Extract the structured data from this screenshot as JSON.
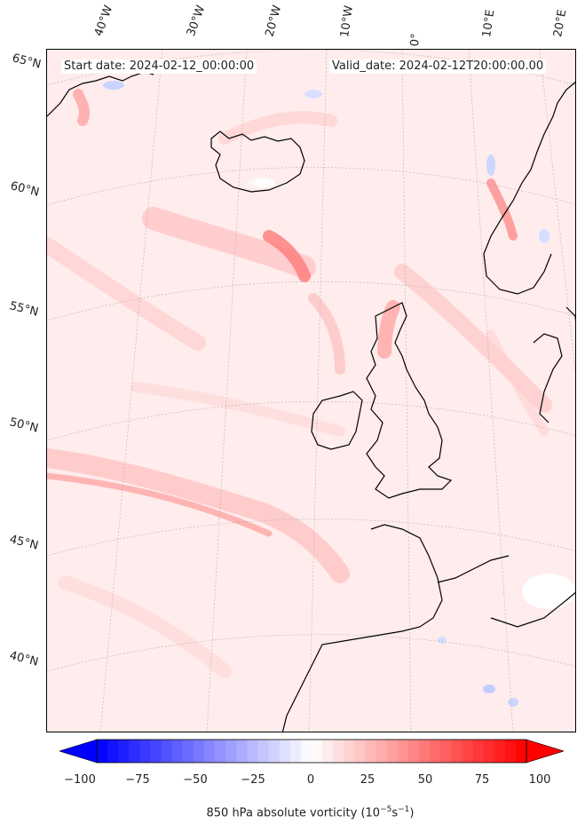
{
  "header": {
    "start_date": "Start date: 2024-02-12_00:00:00",
    "valid_date": "Valid_date: 2024-02-12T20:00:00.00"
  },
  "longitude_labels": [
    "40°W",
    "30°W",
    "20°W",
    "10°W",
    "0°",
    "10°E",
    "20°E"
  ],
  "latitude_labels": [
    "65°N",
    "60°N",
    "55°N",
    "50°N",
    "45°N",
    "40°N"
  ],
  "colorbar": {
    "label_prefix": "850 hPa absolute vorticity (10",
    "label_exp1": "−5",
    "label_mid": "s",
    "label_exp2": "−1",
    "label_suffix": ")",
    "ticks": [
      "−100",
      "−75",
      "−50",
      "−25",
      "0",
      "25",
      "50",
      "75",
      "100"
    ],
    "min": -100,
    "max": 100,
    "min_color": "#0000ff",
    "mid_color": "#ffffff",
    "max_color": "#ff0000"
  }
}
